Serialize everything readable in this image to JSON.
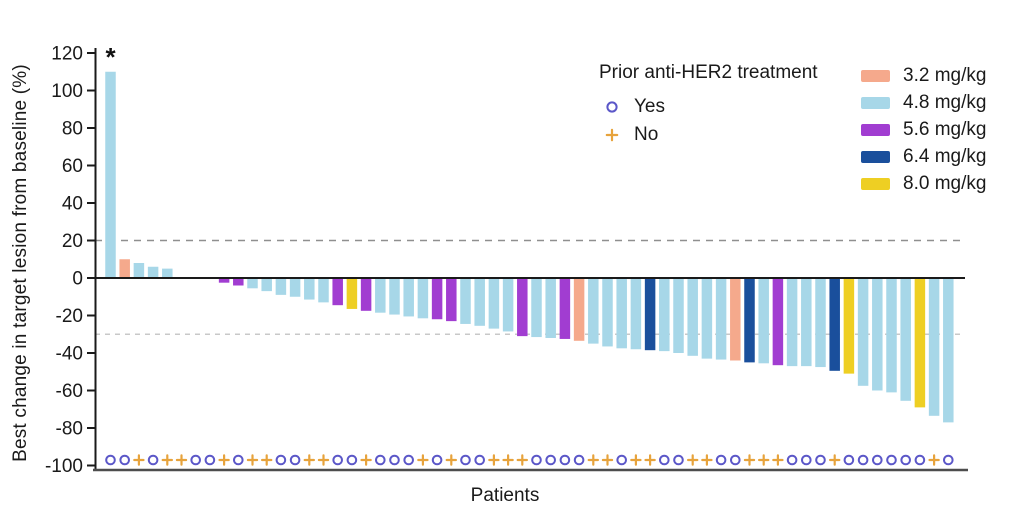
{
  "chart_data": {
    "type": "bar",
    "subtype": "waterfall",
    "title": "",
    "xlabel": "Patients",
    "ylabel": "Best change in target lesion from baseline (%)",
    "ylim": [
      -100,
      120
    ],
    "yticks": [
      120,
      100,
      80,
      60,
      40,
      20,
      0,
      -20,
      -40,
      -60,
      -80,
      -100
    ],
    "grid": false,
    "annotation": {
      "text": "*",
      "applies_to_patient": 1
    },
    "reference_lines": [
      {
        "value": 20,
        "style": "dashed",
        "color": "#8F8F8F"
      },
      {
        "value": -30,
        "style": "dashed",
        "color": "#C8C8C8"
      },
      {
        "value": 0,
        "style": "solid",
        "color": "#1A1A1A"
      }
    ],
    "legend_prior": {
      "title": "Prior anti-HER2 treatment",
      "items": [
        {
          "label": "Yes",
          "symbol": "circle",
          "color": "#5B57C8"
        },
        {
          "label": "No",
          "symbol": "plus",
          "color": "#E7A33C"
        }
      ]
    },
    "legend_doses": [
      {
        "label": "3.2 mg/kg",
        "color": "#F5A98C"
      },
      {
        "label": "4.8 mg/kg",
        "color": "#A7D7E8"
      },
      {
        "label": "5.6 mg/kg",
        "color": "#A13DD1"
      },
      {
        "label": "6.4 mg/kg",
        "color": "#1A4F9C"
      },
      {
        "label": "8.0 mg/kg",
        "color": "#EECF23"
      }
    ],
    "patients": [
      {
        "n": 1,
        "dose": "4.8 mg/kg",
        "change": 110,
        "prior": "Yes",
        "star": true
      },
      {
        "n": 2,
        "dose": "3.2 mg/kg",
        "change": 10,
        "prior": "Yes"
      },
      {
        "n": 3,
        "dose": "4.8 mg/kg",
        "change": 8,
        "prior": "No"
      },
      {
        "n": 4,
        "dose": "4.8 mg/kg",
        "change": 6,
        "prior": "Yes"
      },
      {
        "n": 5,
        "dose": "4.8 mg/kg",
        "change": 5,
        "prior": "No"
      },
      {
        "n": 6,
        "dose": null,
        "change": 0,
        "prior": "No"
      },
      {
        "n": 7,
        "dose": null,
        "change": 0,
        "prior": "Yes"
      },
      {
        "n": 8,
        "dose": null,
        "change": 0,
        "prior": "Yes"
      },
      {
        "n": 9,
        "dose": "5.6 mg/kg",
        "change": -2.5,
        "prior": "No"
      },
      {
        "n": 10,
        "dose": "5.6 mg/kg",
        "change": -4,
        "prior": "Yes"
      },
      {
        "n": 11,
        "dose": "4.8 mg/kg",
        "change": -5.5,
        "prior": "No"
      },
      {
        "n": 12,
        "dose": "4.8 mg/kg",
        "change": -7,
        "prior": "No"
      },
      {
        "n": 13,
        "dose": "4.8 mg/kg",
        "change": -9,
        "prior": "Yes"
      },
      {
        "n": 14,
        "dose": "4.8 mg/kg",
        "change": -10,
        "prior": "Yes"
      },
      {
        "n": 15,
        "dose": "4.8 mg/kg",
        "change": -11.5,
        "prior": "No"
      },
      {
        "n": 16,
        "dose": "4.8 mg/kg",
        "change": -13,
        "prior": "No"
      },
      {
        "n": 17,
        "dose": "5.6 mg/kg",
        "change": -14.5,
        "prior": "Yes"
      },
      {
        "n": 18,
        "dose": "8.0 mg/kg",
        "change": -16.5,
        "prior": "Yes"
      },
      {
        "n": 19,
        "dose": "5.6 mg/kg",
        "change": -17.5,
        "prior": "No"
      },
      {
        "n": 20,
        "dose": "4.8 mg/kg",
        "change": -18.5,
        "prior": "Yes"
      },
      {
        "n": 21,
        "dose": "4.8 mg/kg",
        "change": -19.5,
        "prior": "Yes"
      },
      {
        "n": 22,
        "dose": "4.8 mg/kg",
        "change": -20.5,
        "prior": "Yes"
      },
      {
        "n": 23,
        "dose": "4.8 mg/kg",
        "change": -21.5,
        "prior": "No"
      },
      {
        "n": 24,
        "dose": "5.6 mg/kg",
        "change": -22,
        "prior": "Yes"
      },
      {
        "n": 25,
        "dose": "5.6 mg/kg",
        "change": -23,
        "prior": "No"
      },
      {
        "n": 26,
        "dose": "4.8 mg/kg",
        "change": -24.5,
        "prior": "Yes"
      },
      {
        "n": 27,
        "dose": "4.8 mg/kg",
        "change": -25.5,
        "prior": "Yes"
      },
      {
        "n": 28,
        "dose": "4.8 mg/kg",
        "change": -27,
        "prior": "No"
      },
      {
        "n": 29,
        "dose": "4.8 mg/kg",
        "change": -28.5,
        "prior": "No"
      },
      {
        "n": 30,
        "dose": "5.6 mg/kg",
        "change": -31,
        "prior": "No"
      },
      {
        "n": 31,
        "dose": "4.8 mg/kg",
        "change": -31.5,
        "prior": "Yes"
      },
      {
        "n": 32,
        "dose": "4.8 mg/kg",
        "change": -32,
        "prior": "Yes"
      },
      {
        "n": 33,
        "dose": "5.6 mg/kg",
        "change": -32.5,
        "prior": "Yes"
      },
      {
        "n": 34,
        "dose": "3.2 mg/kg",
        "change": -33.5,
        "prior": "Yes"
      },
      {
        "n": 35,
        "dose": "4.8 mg/kg",
        "change": -35,
        "prior": "No"
      },
      {
        "n": 36,
        "dose": "4.8 mg/kg",
        "change": -36.5,
        "prior": "No"
      },
      {
        "n": 37,
        "dose": "4.8 mg/kg",
        "change": -37.5,
        "prior": "Yes"
      },
      {
        "n": 38,
        "dose": "4.8 mg/kg",
        "change": -38,
        "prior": "No"
      },
      {
        "n": 39,
        "dose": "6.4 mg/kg",
        "change": -38.5,
        "prior": "No"
      },
      {
        "n": 40,
        "dose": "4.8 mg/kg",
        "change": -39,
        "prior": "Yes"
      },
      {
        "n": 41,
        "dose": "4.8 mg/kg",
        "change": -40,
        "prior": "Yes"
      },
      {
        "n": 42,
        "dose": "4.8 mg/kg",
        "change": -41.5,
        "prior": "No"
      },
      {
        "n": 43,
        "dose": "4.8 mg/kg",
        "change": -43,
        "prior": "No"
      },
      {
        "n": 44,
        "dose": "4.8 mg/kg",
        "change": -43.5,
        "prior": "Yes"
      },
      {
        "n": 45,
        "dose": "3.2 mg/kg",
        "change": -44,
        "prior": "Yes"
      },
      {
        "n": 46,
        "dose": "6.4 mg/kg",
        "change": -45,
        "prior": "No"
      },
      {
        "n": 47,
        "dose": "4.8 mg/kg",
        "change": -45.5,
        "prior": "No"
      },
      {
        "n": 48,
        "dose": "5.6 mg/kg",
        "change": -46.5,
        "prior": "No"
      },
      {
        "n": 49,
        "dose": "4.8 mg/kg",
        "change": -47,
        "prior": "Yes"
      },
      {
        "n": 50,
        "dose": "4.8 mg/kg",
        "change": -47,
        "prior": "Yes"
      },
      {
        "n": 51,
        "dose": "4.8 mg/kg",
        "change": -47.5,
        "prior": "Yes"
      },
      {
        "n": 52,
        "dose": "6.4 mg/kg",
        "change": -49.5,
        "prior": "No"
      },
      {
        "n": 53,
        "dose": "8.0 mg/kg",
        "change": -51,
        "prior": "Yes"
      },
      {
        "n": 54,
        "dose": "4.8 mg/kg",
        "change": -57.5,
        "prior": "Yes"
      },
      {
        "n": 55,
        "dose": "4.8 mg/kg",
        "change": -60,
        "prior": "Yes"
      },
      {
        "n": 56,
        "dose": "4.8 mg/kg",
        "change": -61,
        "prior": "Yes"
      },
      {
        "n": 57,
        "dose": "4.8 mg/kg",
        "change": -65.5,
        "prior": "Yes"
      },
      {
        "n": 58,
        "dose": "8.0 mg/kg",
        "change": -69,
        "prior": "Yes"
      },
      {
        "n": 59,
        "dose": "4.8 mg/kg",
        "change": -73.5,
        "prior": "No"
      },
      {
        "n": 60,
        "dose": "4.8 mg/kg",
        "change": -77,
        "prior": "Yes"
      }
    ]
  },
  "colors": {
    "background": "#FFFFFF",
    "axis": "#1A1A1A",
    "bottom_axis": "#4D4D4D",
    "text": "#1A1A1A",
    "prior_yes": "#5B57C8",
    "prior_no": "#E7A33C"
  }
}
